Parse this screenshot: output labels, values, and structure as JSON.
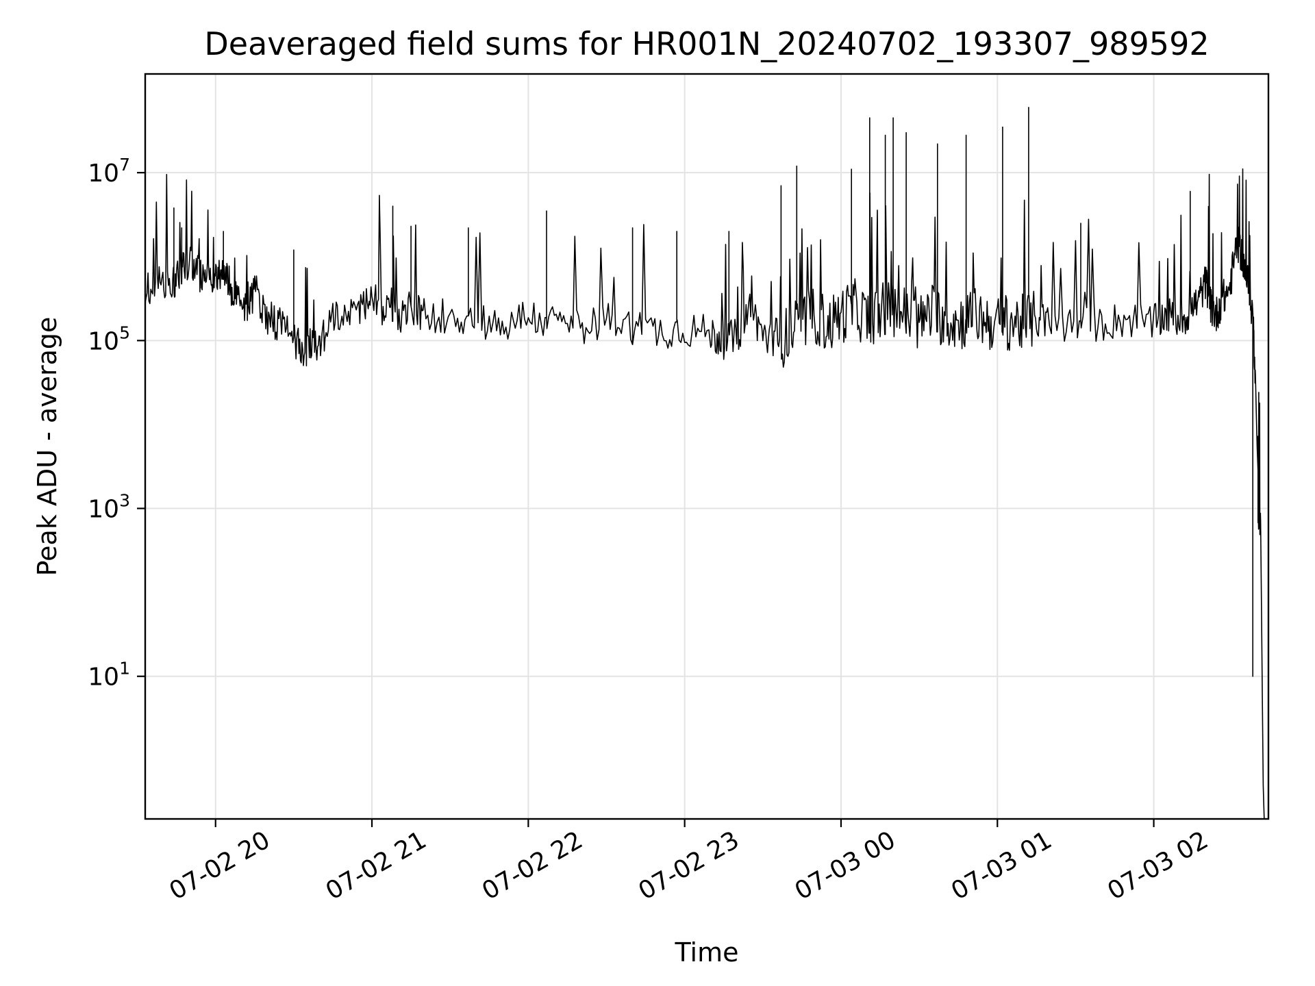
{
  "chart_data": {
    "type": "line",
    "title": "Deaveraged field sums for HR001N_20240702_193307_989592",
    "xlabel": "Time",
    "ylabel": "Peak ADU - average",
    "y_scale": "log",
    "grid": true,
    "legend": "none",
    "line_color": "#000000",
    "xlim": [
      "2024-07-02 19:33",
      "2024-07-03 02:44"
    ],
    "ylim": [
      0.2,
      150000000.0
    ],
    "x_ticks": [
      {
        "t": "2024-07-02 20:00",
        "label": "07-02 20"
      },
      {
        "t": "2024-07-02 21:00",
        "label": "07-02 21"
      },
      {
        "t": "2024-07-02 22:00",
        "label": "07-02 22"
      },
      {
        "t": "2024-07-02 23:00",
        "label": "07-02 23"
      },
      {
        "t": "2024-07-03 00:00",
        "label": "07-03 00"
      },
      {
        "t": "2024-07-03 01:00",
        "label": "07-03 01"
      },
      {
        "t": "2024-07-03 02:00",
        "label": "07-03 02"
      }
    ],
    "y_ticks": [
      {
        "v": 10,
        "base": "10",
        "exp": "1"
      },
      {
        "v": 1000,
        "base": "10",
        "exp": "3"
      },
      {
        "v": 100000,
        "base": "10",
        "exp": "5"
      },
      {
        "v": 10000000,
        "base": "10",
        "exp": "7"
      }
    ],
    "series": [
      {
        "x": [
          "2024-07-02 19:33",
          "2024-07-02 19:38",
          "2024-07-02 19:43",
          "2024-07-02 19:45",
          "2024-07-02 19:48",
          "2024-07-02 19:52",
          "2024-07-02 19:56",
          "2024-07-02 19:59",
          "2024-07-02 20:02",
          "2024-07-02 20:05",
          "2024-07-02 20:08",
          "2024-07-02 20:12",
          "2024-07-02 20:15",
          "2024-07-02 20:20",
          "2024-07-02 20:25",
          "2024-07-02 20:30",
          "2024-07-02 20:34",
          "2024-07-02 20:38",
          "2024-07-02 20:42",
          "2024-07-02 20:48",
          "2024-07-02 20:55",
          "2024-07-02 21:00",
          "2024-07-02 21:05",
          "2024-07-02 21:10",
          "2024-07-02 21:15",
          "2024-07-02 21:20",
          "2024-07-02 21:30",
          "2024-07-02 21:40",
          "2024-07-02 21:50",
          "2024-07-02 22:00",
          "2024-07-02 22:10",
          "2024-07-02 22:20",
          "2024-07-02 22:30",
          "2024-07-02 22:40",
          "2024-07-02 22:50",
          "2024-07-02 23:00",
          "2024-07-02 23:10",
          "2024-07-02 23:15",
          "2024-07-02 23:20",
          "2024-07-02 23:25",
          "2024-07-02 23:30",
          "2024-07-02 23:35",
          "2024-07-02 23:40",
          "2024-07-02 23:45",
          "2024-07-02 23:50",
          "2024-07-02 23:55",
          "2024-07-03 00:00",
          "2024-07-03 00:05",
          "2024-07-03 00:10",
          "2024-07-03 00:15",
          "2024-07-03 00:20",
          "2024-07-03 00:25",
          "2024-07-03 00:30",
          "2024-07-03 00:35",
          "2024-07-03 00:40",
          "2024-07-03 00:45",
          "2024-07-03 00:50",
          "2024-07-03 00:55",
          "2024-07-03 01:00",
          "2024-07-03 01:05",
          "2024-07-03 01:10",
          "2024-07-03 01:15",
          "2024-07-03 01:20",
          "2024-07-03 01:30",
          "2024-07-03 01:40",
          "2024-07-03 01:50",
          "2024-07-03 02:00",
          "2024-07-03 02:05",
          "2024-07-03 02:10",
          "2024-07-03 02:13",
          "2024-07-03 02:17",
          "2024-07-03 02:20",
          "2024-07-03 02:22",
          "2024-07-03 02:24",
          "2024-07-03 02:26",
          "2024-07-03 02:29",
          "2024-07-03 02:32",
          "2024-07-03 02:34",
          "2024-07-03 02:36",
          "2024-07-03 02:38",
          "2024-07-03 02:39",
          "2024-07-03 02:40",
          "2024-07-03 02:40",
          "2024-07-03 02:41",
          "2024-07-03 02:42"
        ],
        "y": [
          400000,
          500000,
          450000,
          600000,
          900000,
          700000,
          500000,
          600000,
          700000,
          500000,
          350000,
          250000,
          400000,
          200000,
          150000,
          100000,
          80000,
          90000,
          120000,
          200000,
          250000,
          300000,
          220000,
          180000,
          250000,
          200000,
          200000,
          180000,
          150000,
          200000,
          160000,
          150000,
          170000,
          150000,
          130000,
          140000,
          120000,
          100000,
          110000,
          250000,
          120000,
          90000,
          120000,
          160000,
          200000,
          150000,
          200000,
          250000,
          180000,
          220000,
          250000,
          200000,
          160000,
          220000,
          180000,
          160000,
          200000,
          180000,
          150000,
          170000,
          160000,
          180000,
          160000,
          150000,
          160000,
          180000,
          160000,
          200000,
          180000,
          200000,
          300000,
          500000,
          250000,
          200000,
          300000,
          400000,
          1500000,
          1000000,
          500000,
          200000,
          40000,
          2000,
          1000,
          700,
          0.5
        ],
        "spikes": [
          {
            "x": "2024-07-02 19:44",
            "y": 3800000
          },
          {
            "x": "2024-07-02 19:47",
            "y": 2200000
          },
          {
            "x": "2024-07-02 20:03",
            "y": 2000000
          },
          {
            "x": "2024-07-02 20:30",
            "y": 1200000
          },
          {
            "x": "2024-07-02 21:08",
            "y": 4000000
          },
          {
            "x": "2024-07-02 21:15",
            "y": 2300000
          },
          {
            "x": "2024-07-02 21:37",
            "y": 2200000
          },
          {
            "x": "2024-07-02 22:07",
            "y": 3500000
          },
          {
            "x": "2024-07-02 22:40",
            "y": 2200000
          },
          {
            "x": "2024-07-02 22:57",
            "y": 2000000
          },
          {
            "x": "2024-07-02 23:17",
            "y": 2000000
          },
          {
            "x": "2024-07-02 23:37",
            "y": 7000000
          },
          {
            "x": "2024-07-02 23:43",
            "y": 12000000
          },
          {
            "x": "2024-07-03 00:04",
            "y": 11000000
          },
          {
            "x": "2024-07-03 00:11",
            "y": 45000000
          },
          {
            "x": "2024-07-03 00:17",
            "y": 28000000
          },
          {
            "x": "2024-07-03 00:20",
            "y": 45000000
          },
          {
            "x": "2024-07-03 00:25",
            "y": 30000000
          },
          {
            "x": "2024-07-03 00:37",
            "y": 22000000
          },
          {
            "x": "2024-07-03 00:48",
            "y": 28000000
          },
          {
            "x": "2024-07-03 01:02",
            "y": 35000000
          },
          {
            "x": "2024-07-03 01:12",
            "y": 60000000
          },
          {
            "x": "2024-07-03 01:32",
            "y": 2500000
          },
          {
            "x": "2024-07-03 02:14",
            "y": 6000000
          },
          {
            "x": "2024-07-03 02:38",
            "y": 10
          }
        ]
      }
    ]
  }
}
